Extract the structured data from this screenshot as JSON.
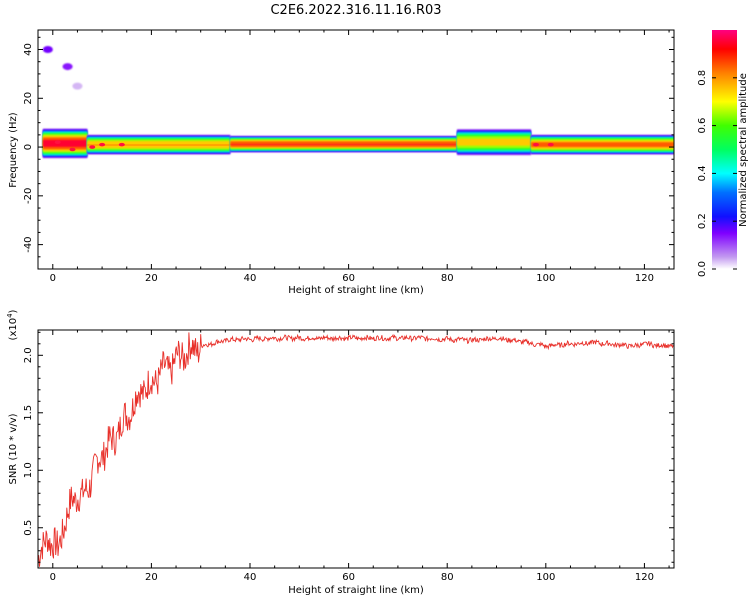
{
  "title": "C2E6.2022.316.11.16.R03",
  "chart_data": [
    {
      "type": "heatmap",
      "xlabel": "Height of straight line (km)",
      "ylabel": "Frequency (Hz)",
      "xlim": [
        -3,
        126
      ],
      "ylim": [
        -50,
        48
      ],
      "xticks": [
        0,
        20,
        40,
        60,
        80,
        100,
        120
      ],
      "yticks": [
        -40,
        -20,
        0,
        20,
        40
      ],
      "colorbar": {
        "label": "Normalized spectral amplitude",
        "range": [
          0,
          1
        ],
        "ticks": [
          "0.0",
          "0.2",
          "0.4",
          "0.6",
          "0.8"
        ],
        "tick_values": [
          0,
          0.2,
          0.4,
          0.6,
          0.8
        ]
      },
      "ridges": [
        {
          "height_range": [
            -2,
            7
          ],
          "freq": 1.5,
          "peak": 1.0,
          "bandwidth": 4.5
        },
        {
          "height_range": [
            7,
            36
          ],
          "freq": 1.0,
          "peak": 0.85,
          "bandwidth": 3.0
        },
        {
          "height_range": [
            36,
            82
          ],
          "freq": 1.2,
          "peak": 0.95,
          "bandwidth": 2.5
        },
        {
          "height_range": [
            82,
            97
          ],
          "freq": 2.0,
          "peak": 0.8,
          "bandwidth": 4.0
        },
        {
          "height_range": [
            97,
            126
          ],
          "freq": 1.0,
          "peak": 0.9,
          "bandwidth": 3.0
        }
      ],
      "hot_spots": [
        [
          1,
          2
        ],
        [
          4,
          -1
        ],
        [
          8,
          0
        ],
        [
          10,
          1
        ],
        [
          14,
          1
        ],
        [
          98,
          1
        ],
        [
          101,
          1
        ]
      ],
      "faint_blobs": [
        [
          -1,
          40,
          0.35
        ],
        [
          3,
          33,
          0.3
        ],
        [
          5,
          25,
          0.08
        ]
      ]
    },
    {
      "type": "line",
      "xlabel": "Height of straight line (km)",
      "ylabel": "SNR (10 * v/v)",
      "y_multiplier": "(x10",
      "y_multiplier_exp": "4",
      "y_multiplier_close": ")",
      "xlim": [
        -3,
        126
      ],
      "ylim": [
        0.15,
        2.22
      ],
      "xticks": [
        0,
        20,
        40,
        60,
        80,
        100,
        120
      ],
      "yticks": [
        "0.5",
        "1.0",
        "1.5",
        "2.0"
      ],
      "ytick_values": [
        0.5,
        1.0,
        1.5,
        2.0
      ],
      "color": "#e8302a",
      "series": [
        {
          "x": [
            -3,
            -2,
            -1,
            0,
            1,
            2,
            3,
            4,
            5,
            6,
            8,
            10,
            12,
            14,
            16,
            18,
            20,
            22,
            24,
            26,
            28,
            30,
            32,
            35,
            38,
            40,
            45,
            50,
            55,
            60,
            65,
            70,
            75,
            80,
            85,
            90,
            95,
            100,
            105,
            110,
            115,
            118,
            120,
            122,
            126
          ],
          "values": [
            0.25,
            0.3,
            0.45,
            0.35,
            0.3,
            0.5,
            0.6,
            0.75,
            0.8,
            0.75,
            0.95,
            1.15,
            1.25,
            1.4,
            1.55,
            1.7,
            1.75,
            1.85,
            1.9,
            2.0,
            2.05,
            2.08,
            2.1,
            2.13,
            2.14,
            2.14,
            2.15,
            2.15,
            2.15,
            2.15,
            2.15,
            2.15,
            2.15,
            2.14,
            2.13,
            2.15,
            2.12,
            2.08,
            2.1,
            2.11,
            2.09,
            2.08,
            2.1,
            2.09,
            2.08
          ]
        }
      ]
    }
  ]
}
